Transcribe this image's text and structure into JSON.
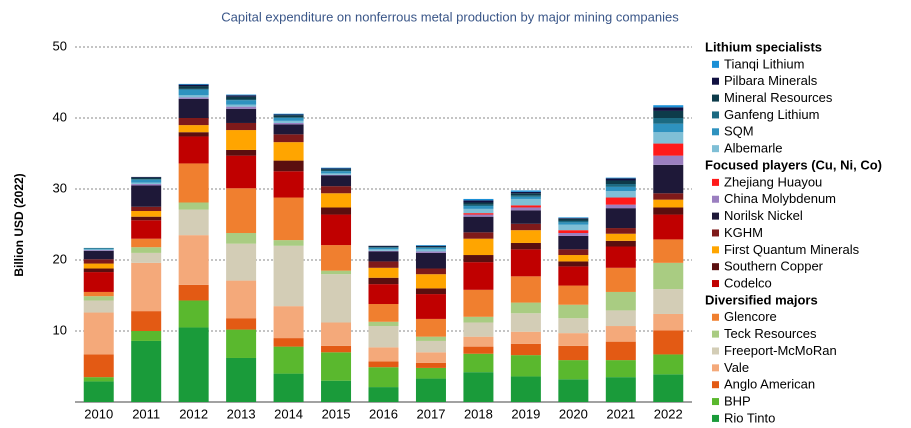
{
  "chart_data": {
    "type": "stacked_bar",
    "title": "Capital expenditure on nonferrous metal production by major mining companies",
    "y_label": "Billion USD (2022)",
    "categories": [
      "2010",
      "2011",
      "2012",
      "2013",
      "2014",
      "2015",
      "2016",
      "2017",
      "2018",
      "2019",
      "2020",
      "2021",
      "2022"
    ],
    "ylim": [
      0,
      50
    ],
    "yticks": [
      10,
      20,
      30,
      40,
      50
    ],
    "grid": true,
    "legend": "right",
    "series": [
      {
        "name": "Rio Tinto",
        "group": "Diversified majors",
        "color": "#1a9b3a",
        "values": [
          2.9,
          8.6,
          10.5,
          6.2,
          4.0,
          3.0,
          2.1,
          3.3,
          4.2,
          3.6,
          3.2,
          3.5,
          3.9
        ]
      },
      {
        "name": "BHP",
        "group": "Diversified majors",
        "color": "#5ab82e",
        "values": [
          0.6,
          1.4,
          3.8,
          4.0,
          3.8,
          4.0,
          2.8,
          1.5,
          2.6,
          3.0,
          2.7,
          2.4,
          2.8
        ]
      },
      {
        "name": "Anglo American",
        "group": "Diversified majors",
        "color": "#e35a14",
        "values": [
          3.2,
          2.8,
          2.2,
          1.6,
          1.2,
          0.9,
          0.8,
          0.7,
          1.0,
          1.6,
          2.0,
          2.6,
          3.4
        ]
      },
      {
        "name": "Vale",
        "group": "Diversified majors",
        "color": "#f4a97a",
        "values": [
          5.9,
          6.8,
          7.0,
          5.3,
          4.5,
          3.3,
          2.0,
          1.5,
          1.4,
          1.7,
          1.8,
          2.2,
          2.3
        ]
      },
      {
        "name": "Freeport-McMoRan",
        "group": "Diversified majors",
        "color": "#d3cdb6",
        "values": [
          1.7,
          1.4,
          3.6,
          5.2,
          8.5,
          6.8,
          3.0,
          1.6,
          2.0,
          2.6,
          2.1,
          2.2,
          3.5
        ]
      },
      {
        "name": "Teck Resources",
        "group": "Diversified majors",
        "color": "#a9cc82",
        "values": [
          0.6,
          0.8,
          1.0,
          1.5,
          0.8,
          0.5,
          0.6,
          0.6,
          0.8,
          1.5,
          1.9,
          2.6,
          3.7
        ]
      },
      {
        "name": "Glencore",
        "group": "Diversified majors",
        "color": "#f07f2f",
        "values": [
          0.6,
          1.2,
          5.5,
          6.3,
          6.0,
          3.6,
          2.5,
          2.5,
          3.8,
          3.7,
          2.7,
          3.4,
          3.3
        ]
      },
      {
        "name": "Codelco",
        "group": "Focused players (Cu, Ni, Co)",
        "color": "#c00000",
        "values": [
          2.8,
          2.6,
          3.8,
          4.6,
          3.7,
          4.3,
          2.8,
          3.5,
          3.9,
          3.8,
          2.7,
          3.0,
          3.5
        ]
      },
      {
        "name": "Southern Copper",
        "group": "Focused players (Cu, Ni, Co)",
        "color": "#5a0f0f",
        "values": [
          0.5,
          0.5,
          0.6,
          0.8,
          1.5,
          1.0,
          0.9,
          0.8,
          1.0,
          0.9,
          0.7,
          0.8,
          1.0
        ]
      },
      {
        "name": "First Quantum Minerals",
        "group": "Focused players (Cu, Ni, Co)",
        "color": "#ffa500",
        "values": [
          0.7,
          0.8,
          1.0,
          2.8,
          2.6,
          2.0,
          1.4,
          2.0,
          2.3,
          1.8,
          0.9,
          1.0,
          1.1
        ]
      },
      {
        "name": "KGHM",
        "group": "Focused players (Cu, Ni, Co)",
        "color": "#7f1a1a",
        "values": [
          0.6,
          0.6,
          1.0,
          1.0,
          1.1,
          1.0,
          0.9,
          0.8,
          0.9,
          0.9,
          0.8,
          0.8,
          0.9
        ]
      },
      {
        "name": "Norilsk Nickel",
        "group": "Focused players (Cu, Ni, Co)",
        "color": "#1e1838",
        "values": [
          1.2,
          3.0,
          2.7,
          2.0,
          1.4,
          1.5,
          1.4,
          2.2,
          2.2,
          1.9,
          1.9,
          2.8,
          4.0
        ]
      },
      {
        "name": "China Molybdenum",
        "group": "Focused players (Cu, Ni, Co)",
        "color": "#9b7fc0",
        "values": [
          0.1,
          0.2,
          0.2,
          0.3,
          0.2,
          0.1,
          0.1,
          0.2,
          0.3,
          0.4,
          0.4,
          0.5,
          1.3
        ]
      },
      {
        "name": "Zhejiang Huayou",
        "group": "Focused players (Cu, Ni, Co)",
        "color": "#ff1a1a",
        "values": [
          0,
          0,
          0,
          0,
          0,
          0,
          0,
          0,
          0.2,
          0.3,
          0.4,
          1.0,
          1.7
        ]
      },
      {
        "name": "Albemarle",
        "group": "Lithium specialists",
        "color": "#7fbfd6",
        "values": [
          0.1,
          0.2,
          0.3,
          0.3,
          0.3,
          0.2,
          0.2,
          0.3,
          0.6,
          0.9,
          0.8,
          0.9,
          1.6
        ]
      },
      {
        "name": "SQM",
        "group": "Lithium specialists",
        "color": "#2e92bf",
        "values": [
          0.1,
          0.4,
          0.8,
          0.6,
          0.4,
          0.3,
          0.2,
          0.2,
          0.4,
          0.3,
          0.3,
          0.6,
          1.2
        ]
      },
      {
        "name": "Ganfeng Lithium",
        "group": "Lithium specialists",
        "color": "#1b6a82",
        "values": [
          0.1,
          0.1,
          0.1,
          0.1,
          0.1,
          0.1,
          0.1,
          0.1,
          0.2,
          0.2,
          0.2,
          0.4,
          0.8
        ]
      },
      {
        "name": "Mineral Resources",
        "group": "Lithium specialists",
        "color": "#0d3b4a",
        "values": [
          0,
          0.2,
          0.4,
          0.4,
          0.3,
          0.2,
          0.1,
          0.1,
          0.3,
          0.3,
          0.3,
          0.5,
          1.0
        ]
      },
      {
        "name": "Pilbara Minerals",
        "group": "Lithium specialists",
        "color": "#101040",
        "values": [
          0,
          0.1,
          0.2,
          0.2,
          0.1,
          0.1,
          0.1,
          0.1,
          0.3,
          0.2,
          0.1,
          0.3,
          0.5
        ]
      },
      {
        "name": "Tianqi Lithium",
        "group": "Lithium specialists",
        "color": "#1a8fd6",
        "values": [
          0,
          0,
          0.1,
          0.1,
          0.1,
          0.1,
          0,
          0.1,
          0.2,
          0.2,
          0.1,
          0.1,
          0.3
        ]
      }
    ]
  }
}
